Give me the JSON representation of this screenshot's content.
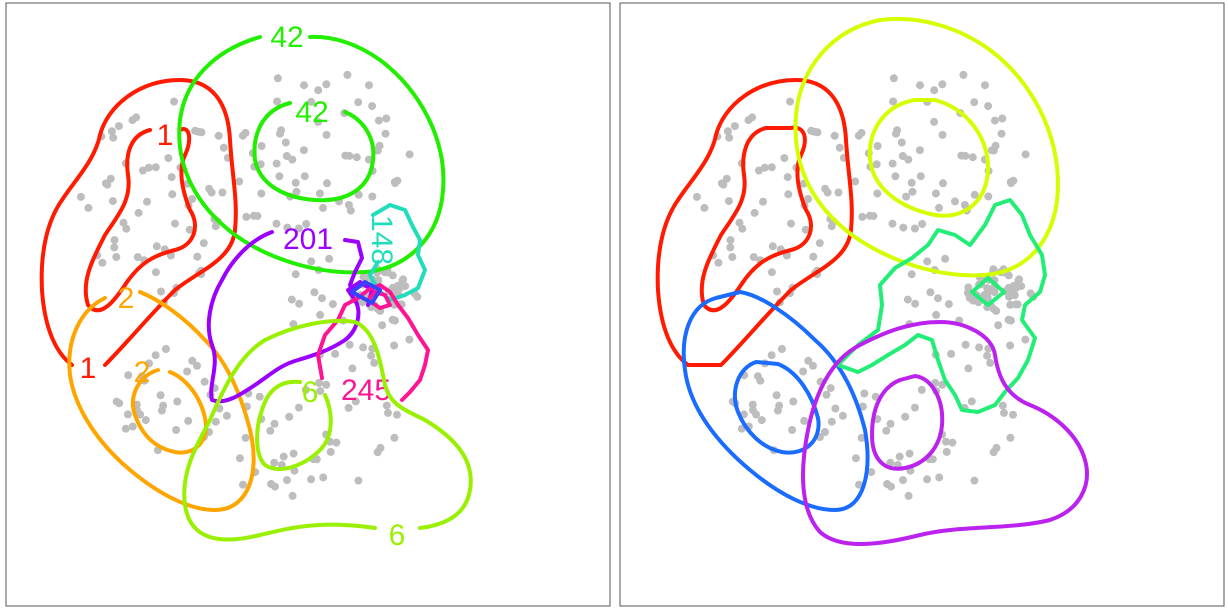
{
  "chart_data": [
    {
      "type": "scatter",
      "title": "",
      "xlabel": "",
      "ylabel": "",
      "point_color": "#bdbdbd",
      "contours": [
        {
          "color": "#ff1a00",
          "labels": [
            "1",
            "1"
          ]
        },
        {
          "color": "#ffa500",
          "labels": [
            "2",
            "2"
          ]
        },
        {
          "color": "#22ee00",
          "labels": [
            "42",
            "42"
          ]
        },
        {
          "color": "#9b00ff",
          "labels": [
            "201"
          ]
        },
        {
          "color": "#22ddbb",
          "labels": [
            "148"
          ]
        },
        {
          "color": "#ff1493",
          "labels": [
            "245"
          ]
        },
        {
          "color": "#99f000",
          "labels": [
            "6",
            "6"
          ]
        }
      ]
    },
    {
      "type": "scatter",
      "title": "",
      "xlabel": "",
      "ylabel": "",
      "point_color": "#bdbdbd",
      "contours": [
        {
          "color": "#ff1a00",
          "labels": []
        },
        {
          "color": "#1a6cff",
          "labels": []
        },
        {
          "color": "#d4ff00",
          "labels": []
        },
        {
          "color": "#22ee77",
          "labels": []
        },
        {
          "color": "#bb22ee",
          "labels": []
        }
      ]
    }
  ]
}
